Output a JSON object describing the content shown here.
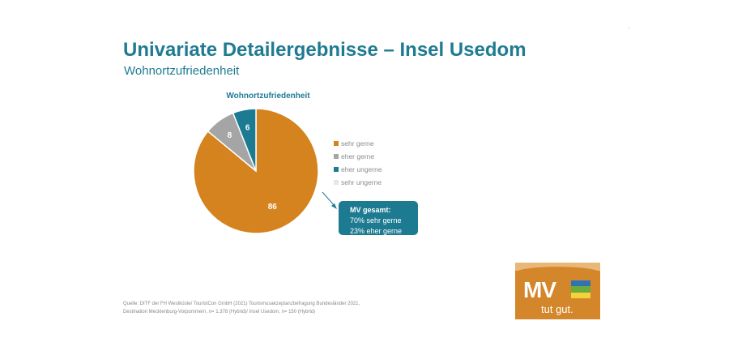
{
  "slide": {
    "title": "Univariate Detailergebnisse – Insel Usedom",
    "subtitle": "Wohnortzufriedenheit",
    "corner_mark": "-"
  },
  "chart_data": {
    "type": "pie",
    "title": "Wohnortzufriedenheit",
    "categories": [
      "sehr gerne",
      "eher gerne",
      "eher ungerne",
      "sehr ungerne"
    ],
    "values": [
      86,
      8,
      6,
      0
    ],
    "colors": [
      "#d4831e",
      "#a5a5a5",
      "#1c7a91",
      "#e6e6e6"
    ],
    "data_labels": [
      "86",
      "8",
      "6",
      ""
    ],
    "legend_position": "right"
  },
  "callout": {
    "title": "MV gesamt:",
    "line1": "70% sehr gerne",
    "line2": "23% eher gerne"
  },
  "source": {
    "line1": "Quelle: DITF der FH Westküste/ TouristCon GmbH (2021) Tourismusakzeptanzbefragung Bundesländer 2021,",
    "line2": "Destination Mecklenburg-Vorpommern, n= 1.378 (Hybrid)/ Insel Usedom, n= 150 (Hybrid)"
  },
  "logo": {
    "wordmark": "MV",
    "tagline": "tut gut.",
    "colors": {
      "background": "#d4862a",
      "flag_blue": "#2f73b5",
      "flag_green": "#6bab3c",
      "flag_yellow": "#f3d23a"
    }
  },
  "colors": {
    "accent": "#1f7b92"
  }
}
